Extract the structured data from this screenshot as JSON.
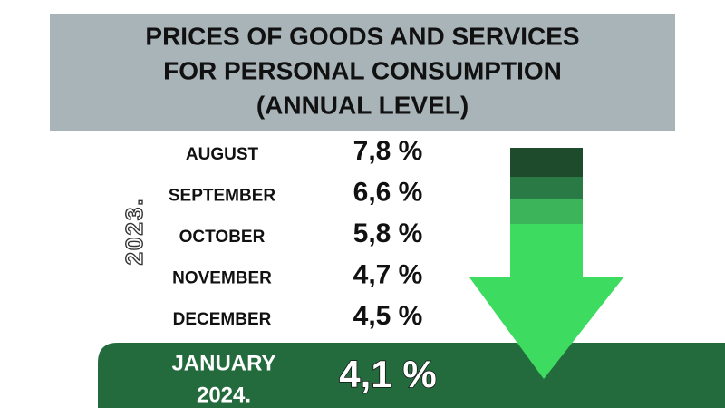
{
  "header": {
    "title_lines": [
      "PRICES OF GOODS AND SERVICES",
      "FOR PERSONAL CONSUMPTION",
      "(ANNUAL LEVEL)"
    ]
  },
  "year": "2023.",
  "rows": [
    {
      "month": "AUGUST",
      "value": "7,8 %"
    },
    {
      "month": "SEPTEMBER",
      "value": "6,6 %"
    },
    {
      "month": "OCTOBER",
      "value": "5,8 %"
    },
    {
      "month": "NOVEMBER",
      "value": "4,7 %"
    },
    {
      "month": "DECEMBER",
      "value": "4,5 %"
    }
  ],
  "highlight": {
    "month_lines": [
      "JANUARY",
      "2024."
    ],
    "value": "4,1 %"
  }
}
